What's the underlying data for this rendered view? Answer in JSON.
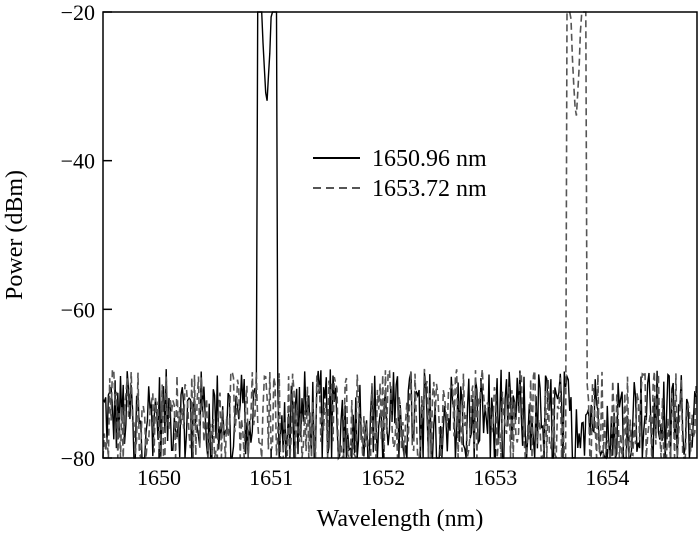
{
  "chart_data": {
    "type": "line",
    "title": "",
    "xlabel": "Wavelength (nm)",
    "ylabel": "Power (dBm)",
    "xlim": [
      1649.5,
      1654.8
    ],
    "ylim": [
      -80,
      -20
    ],
    "xticks": [
      1650,
      1651,
      1652,
      1653,
      1654
    ],
    "yticks": [
      -80,
      -60,
      -40,
      -20
    ],
    "xtick_labels": [
      "1650",
      "1651",
      "1652",
      "1653",
      "1654"
    ],
    "ytick_labels": [
      "−80",
      "−60",
      "−40",
      "−20"
    ],
    "grid": false,
    "legend_position": "top-center",
    "noise_floor_range": [
      -80,
      -66
    ],
    "series": [
      {
        "name": "1650.96 nm",
        "style": "solid",
        "color": "#000000",
        "peak_x": 1650.96,
        "peak_y": -33
      },
      {
        "name": "1653.72 nm",
        "style": "dashed",
        "color": "#555555",
        "peak_x": 1653.72,
        "peak_y": -35
      }
    ]
  }
}
